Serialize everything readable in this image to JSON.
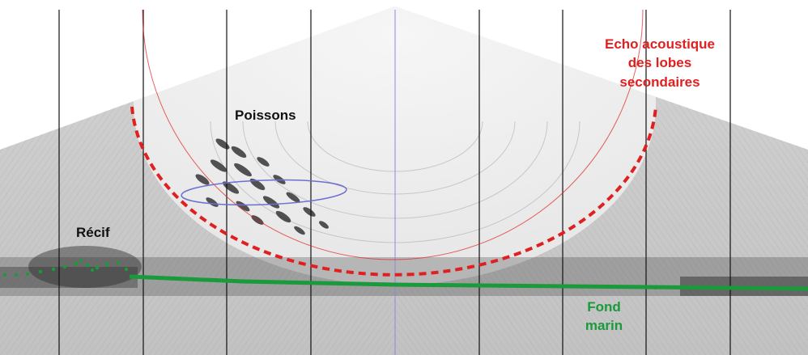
{
  "labels": {
    "fish": "Poissons",
    "reef": "Récif",
    "sidelobe_echo_line1": "Echo acoustique",
    "sidelobe_echo_line2": "des lobes",
    "sidelobe_echo_line3": "secondaires",
    "seafloor_line1": "Fond",
    "seafloor_line2": "marin"
  },
  "colors": {
    "sidelobe_echo": "#e02020",
    "seafloor": "#1a9a3a",
    "fish_ellipse": "#6a6fd0",
    "text_dark": "#111111",
    "grid_lines": "#111111",
    "center_line": "#8a8ae0"
  }
}
